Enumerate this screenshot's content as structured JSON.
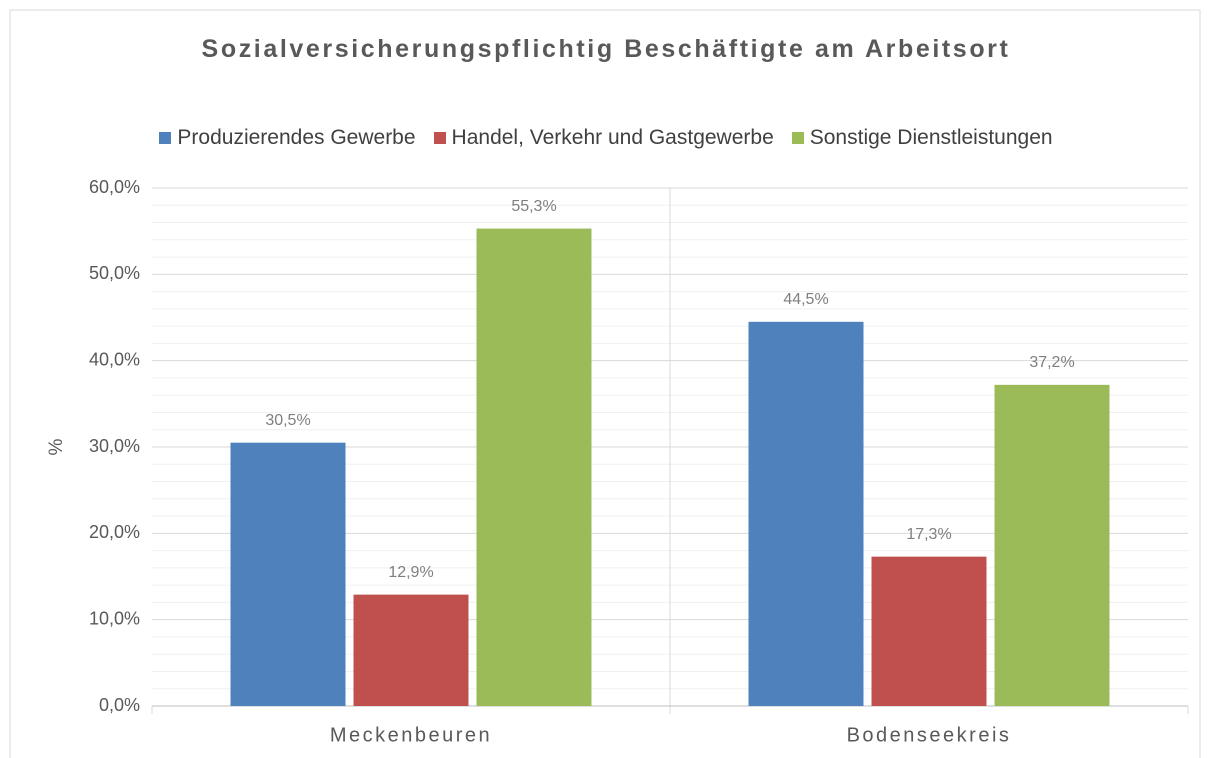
{
  "chart_data": {
    "type": "bar",
    "title": "Sozialversicherungspflichtig Beschäftigte am Arbeitsort",
    "y_label": "%",
    "categories": [
      "Meckenbeuren",
      "Bodenseekreis"
    ],
    "series": [
      {
        "name": "Produzierendes Gewerbe",
        "color": "#4f81bd",
        "values": [
          30.5,
          44.5
        ],
        "value_labels": [
          "30,5%",
          "44,5%"
        ]
      },
      {
        "name": "Handel, Verkehr und Gastgewerbe",
        "color": "#c0504d",
        "values": [
          12.9,
          17.3
        ],
        "value_labels": [
          "12,9%",
          "17,3%"
        ]
      },
      {
        "name": "Sonstige Dienstleistungen",
        "color": "#9bbb59",
        "values": [
          55.3,
          37.2
        ],
        "value_labels": [
          "55,3%",
          "37,2%"
        ]
      }
    ],
    "ylim": [
      0,
      60
    ],
    "yticks": [
      {
        "value": 0,
        "label": "0,0%"
      },
      {
        "value": 10,
        "label": "10,0%"
      },
      {
        "value": 20,
        "label": "20,0%"
      },
      {
        "value": 30,
        "label": "30,0%"
      },
      {
        "value": 40,
        "label": "40,0%"
      },
      {
        "value": 50,
        "label": "50,0%"
      },
      {
        "value": 60,
        "label": "60,0%"
      }
    ],
    "grid": true,
    "legend": "top"
  }
}
